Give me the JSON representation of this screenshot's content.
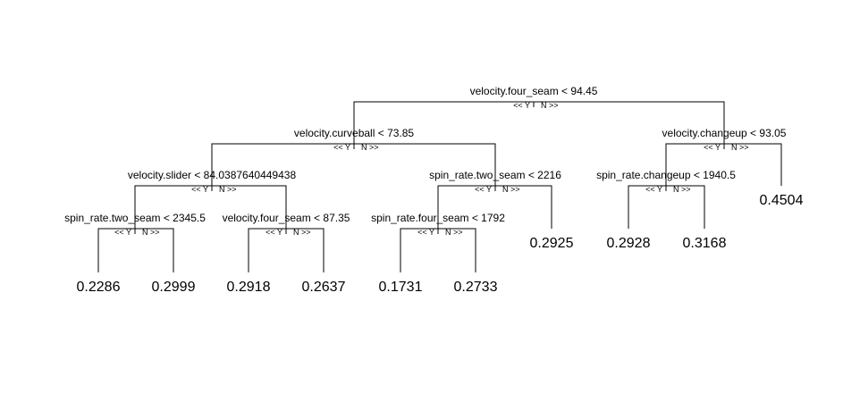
{
  "tree": {
    "direction_labels": {
      "left": "<< Y",
      "right": "N >>"
    },
    "nodes": [
      {
        "id": "n1",
        "split": "velocity.four_seam < 94.45"
      },
      {
        "id": "n2",
        "split": "velocity.curveball < 73.85"
      },
      {
        "id": "n3",
        "split": "velocity.changeup < 93.05"
      },
      {
        "id": "n4",
        "split": "velocity.slider < 84.0387640449438"
      },
      {
        "id": "n5",
        "split": "spin_rate.two_seam < 2216"
      },
      {
        "id": "n6",
        "split": "spin_rate.changeup < 1940.5"
      },
      {
        "id": "n8",
        "split": "spin_rate.two_seam < 2345.5"
      },
      {
        "id": "n9",
        "split": "velocity.four_seam < 87.35"
      },
      {
        "id": "n10",
        "split": "spin_rate.four_seam < 1792"
      }
    ],
    "leaves": [
      {
        "id": "l1",
        "value": "0.2286"
      },
      {
        "id": "l2",
        "value": "0.2999"
      },
      {
        "id": "l3",
        "value": "0.2918"
      },
      {
        "id": "l4",
        "value": "0.2637"
      },
      {
        "id": "l5",
        "value": "0.1731"
      },
      {
        "id": "l6",
        "value": "0.2733"
      },
      {
        "id": "l7",
        "value": "0.2925"
      },
      {
        "id": "l8",
        "value": "0.2928"
      },
      {
        "id": "l9",
        "value": "0.3168"
      },
      {
        "id": "l10",
        "value": "0.4504"
      }
    ]
  }
}
